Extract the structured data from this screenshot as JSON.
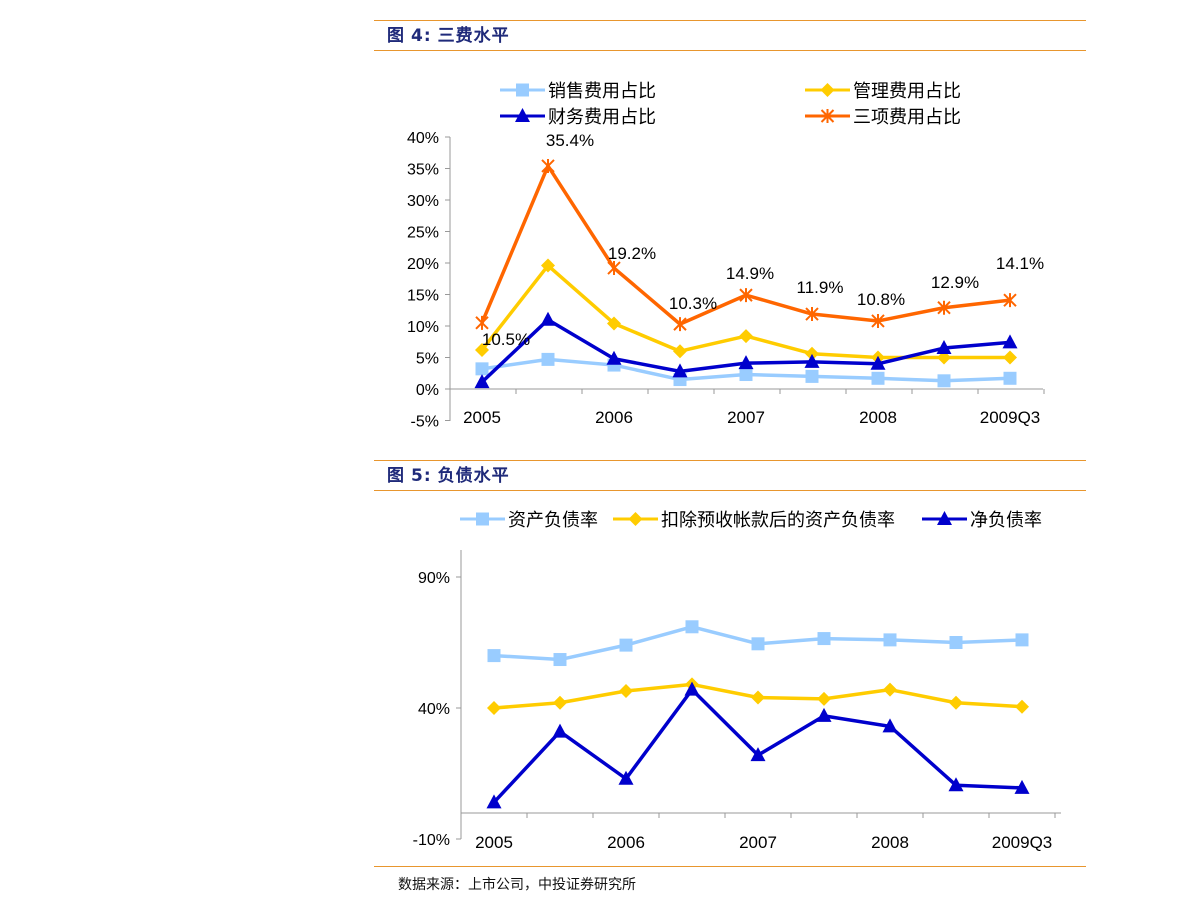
{
  "figure4": {
    "title_prefix": "图",
    "title_number": "4:",
    "title_text": "三费水平"
  },
  "figure5": {
    "title_prefix": "图",
    "title_number": "5:",
    "title_text": "负债水平"
  },
  "source_note": "数据来源：上市公司，中投证券研究所",
  "colors": {
    "light_blue": "#99ccff",
    "yellow": "#ffcc00",
    "dark_blue": "#0000cc",
    "orange": "#ff6600",
    "accent_rule": "#e8962e",
    "title_text": "#1f2a7a"
  },
  "chart_data": [
    {
      "type": "line",
      "title": "三费水平",
      "categories": [
        "2005",
        "",
        "2006",
        "",
        "2007",
        "",
        "2008",
        "",
        "2009Q3"
      ],
      "x_tick_labels": [
        "2005",
        "2006",
        "2007",
        "2008",
        "2009Q3"
      ],
      "ylim": [
        -5,
        40
      ],
      "y_ticks": [
        -5,
        0,
        5,
        10,
        15,
        20,
        25,
        30,
        35,
        40
      ],
      "y_tick_labels": [
        "-5%",
        "0%",
        "5%",
        "10%",
        "15%",
        "20%",
        "25%",
        "30%",
        "35%",
        "40%"
      ],
      "legend_position": "top",
      "series": [
        {
          "name": "销售费用占比",
          "marker": "square",
          "color": "#99ccff",
          "values": [
            3.2,
            4.7,
            3.8,
            1.5,
            2.3,
            2.0,
            1.7,
            1.3,
            1.7
          ]
        },
        {
          "name": "管理费用占比",
          "marker": "diamond",
          "color": "#ffcc00",
          "values": [
            6.2,
            19.6,
            10.4,
            6.0,
            8.4,
            5.6,
            5.0,
            5.0,
            5.0
          ]
        },
        {
          "name": "财务费用占比",
          "marker": "triangle",
          "color": "#0000cc",
          "values": [
            1.1,
            11.0,
            4.8,
            2.8,
            4.1,
            4.3,
            4.0,
            6.5,
            7.4
          ]
        },
        {
          "name": "三项费用占比",
          "marker": "asterisk",
          "color": "#ff6600",
          "values": [
            10.5,
            35.4,
            19.2,
            10.3,
            14.9,
            11.9,
            10.8,
            12.9,
            14.1
          ]
        }
      ],
      "annotations": [
        "10.5%",
        "35.4%",
        "19.2%",
        "10.3%",
        "14.9%",
        "11.9%",
        "10.8%",
        "12.9%",
        "14.1%"
      ]
    },
    {
      "type": "line",
      "title": "负债水平",
      "categories": [
        "2005",
        "",
        "2006",
        "",
        "2007",
        "",
        "2008",
        "",
        "2009Q3"
      ],
      "x_tick_labels": [
        "2005",
        "2006",
        "2007",
        "2008",
        "2009Q3"
      ],
      "ylim": [
        -10,
        100
      ],
      "y_tick_labels": [
        "-10%",
        "40%",
        "90%"
      ],
      "y_tick_values": [
        -10,
        40,
        90
      ],
      "legend_position": "top",
      "series": [
        {
          "name": "资产负债率",
          "marker": "square",
          "color": "#99ccff",
          "values": [
            60,
            58.5,
            64,
            71,
            64.5,
            66.5,
            66,
            65,
            66
          ]
        },
        {
          "name": "扣除预收帐款后的资产负债率",
          "marker": "diamond",
          "color": "#ffcc00",
          "values": [
            40,
            42,
            46.5,
            49,
            44,
            43.5,
            47,
            42,
            40.5
          ]
        },
        {
          "name": "净负债率",
          "marker": "triangle",
          "color": "#0000cc",
          "values": [
            4,
            31,
            13,
            47,
            22,
            37,
            33,
            10.5,
            9.5
          ]
        }
      ]
    }
  ]
}
